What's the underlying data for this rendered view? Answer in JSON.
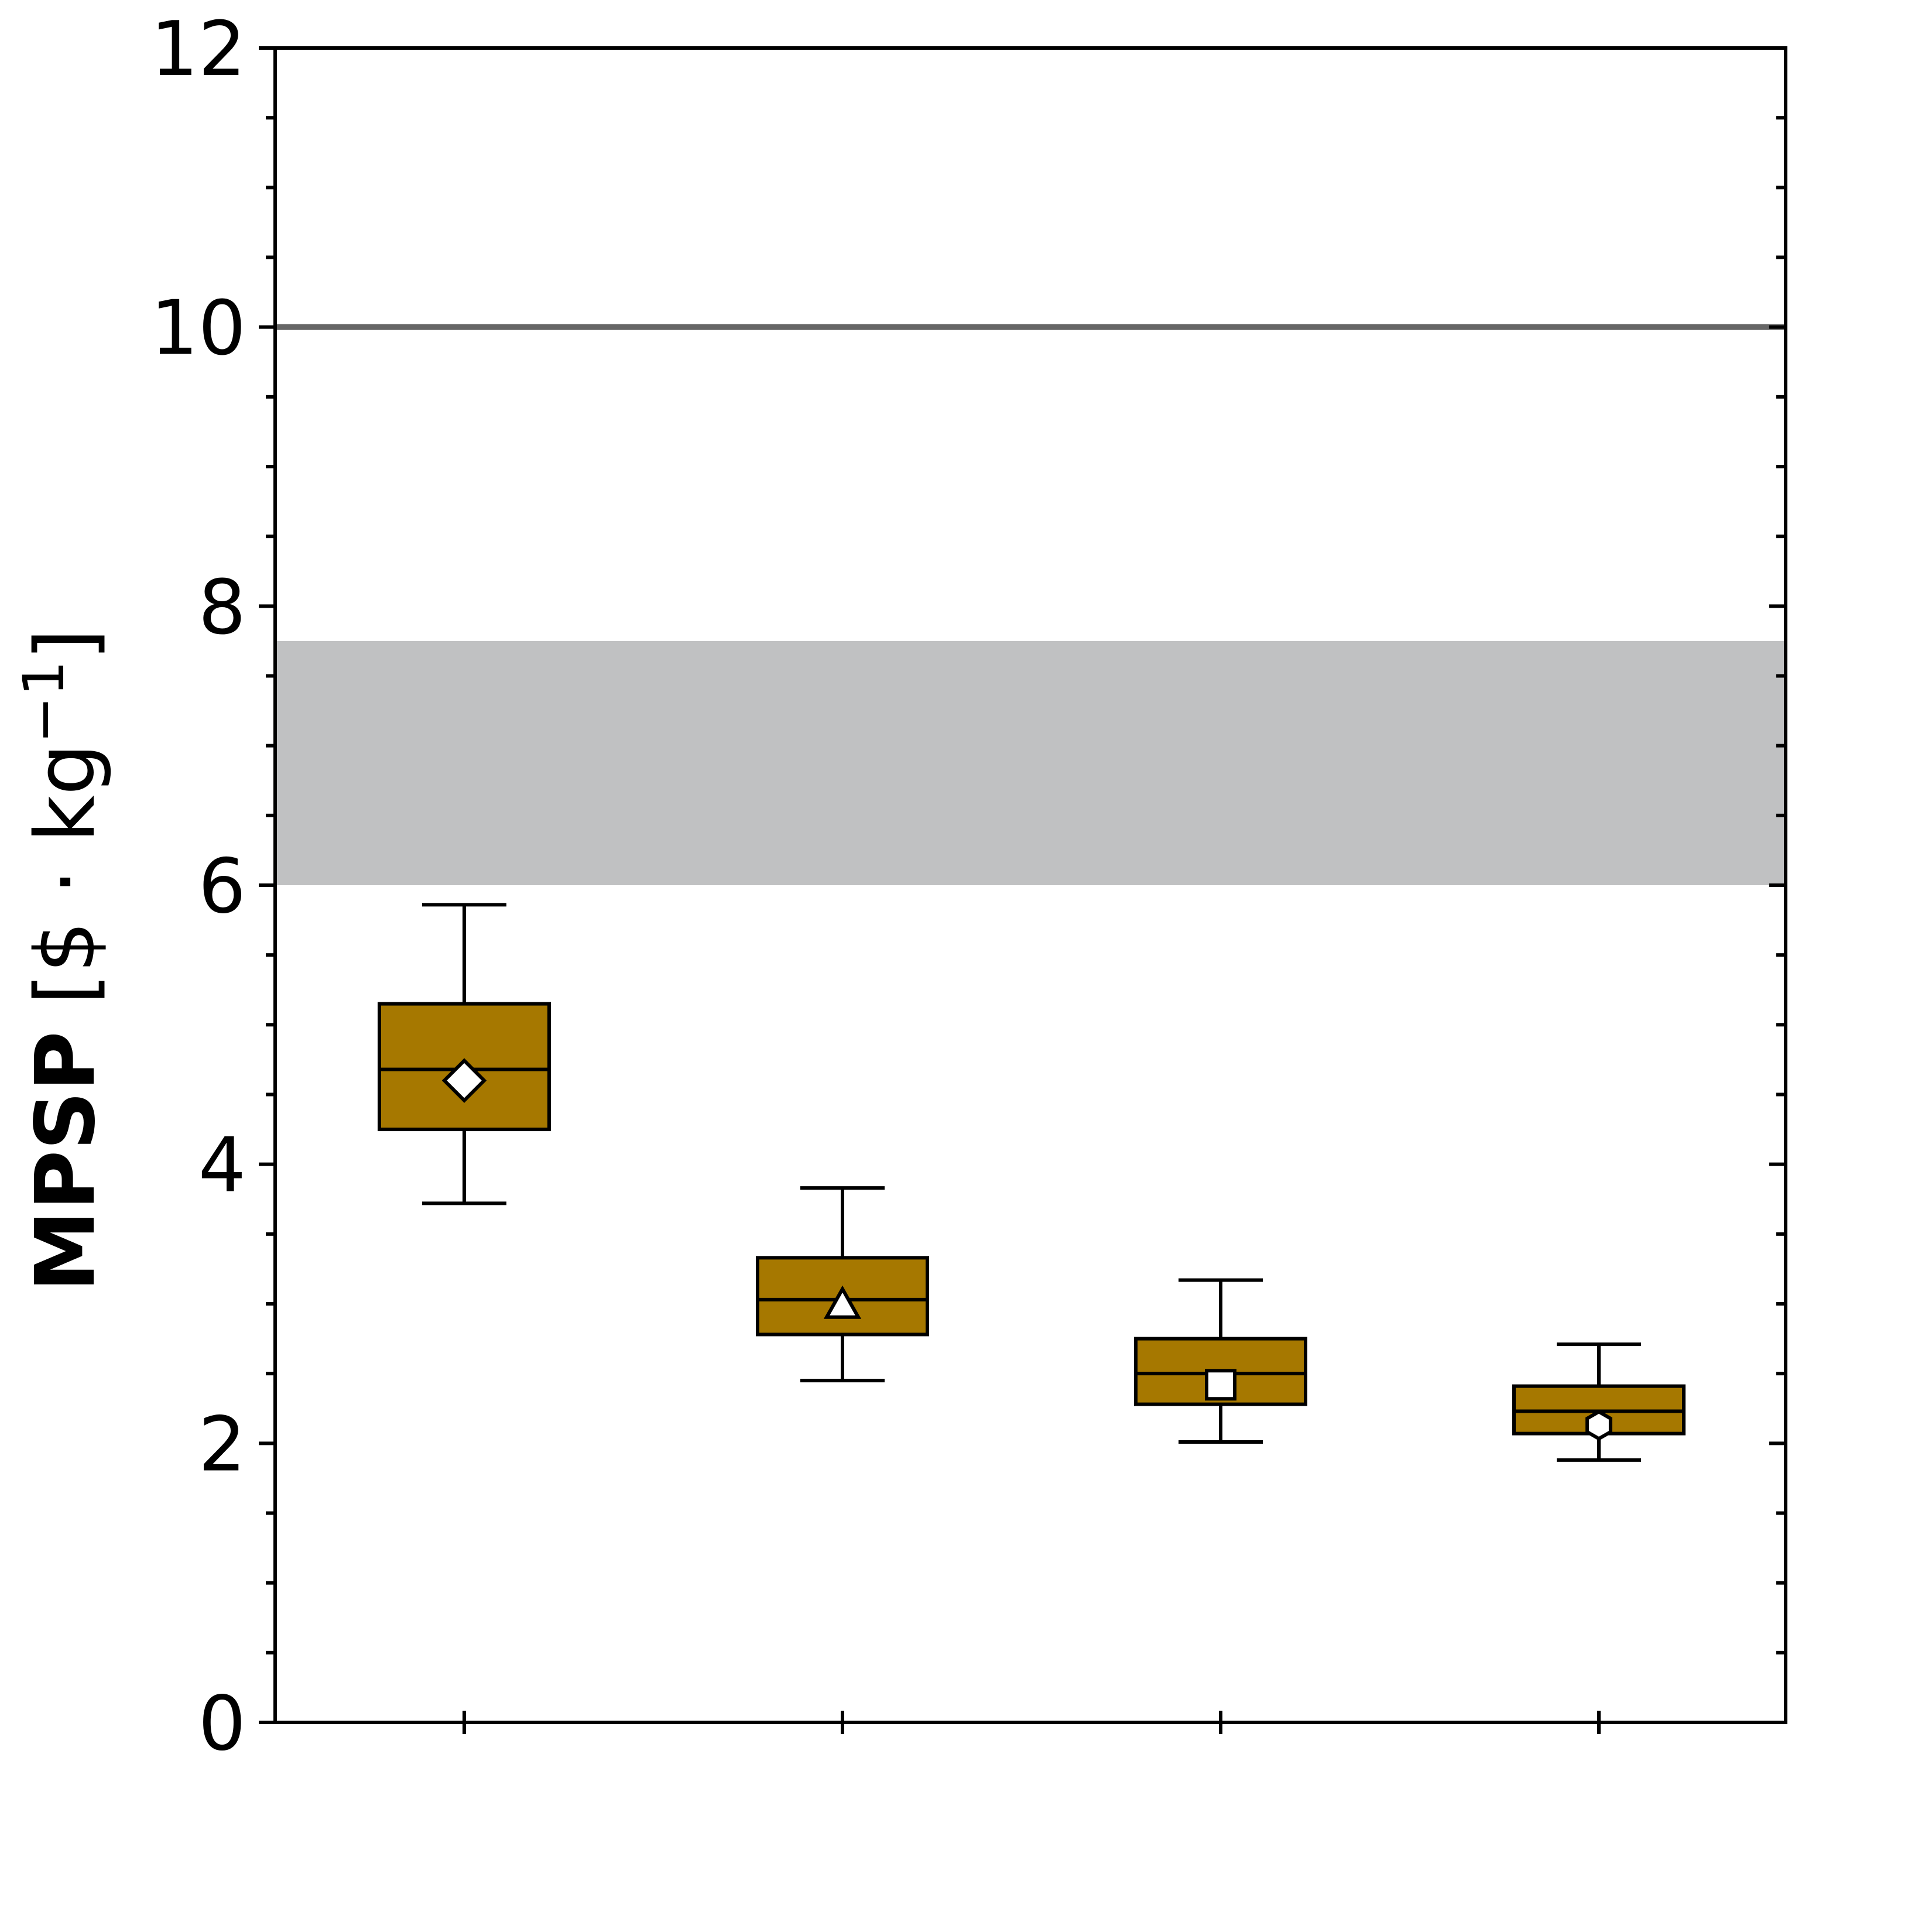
{
  "chart_data": {
    "type": "box",
    "ylabel": {
      "bold": "MPSP",
      "unit_prefix": " [$ · kg",
      "unit_exponent": "−1",
      "unit_suffix": "]"
    },
    "ylim": [
      0,
      12
    ],
    "yticks": [
      0,
      2,
      4,
      6,
      8,
      10,
      12
    ],
    "yticks_minor_step": 0.5,
    "xticks_count": 4,
    "grid": false,
    "reference_line": {
      "y": 10,
      "color": "#666666"
    },
    "reference_band": {
      "y_low": 6.0,
      "y_high": 7.75,
      "color": "#c0c1c2"
    },
    "box_color": "#a67800",
    "boxes": [
      {
        "whisker_low": 3.72,
        "q1": 4.25,
        "median": 4.68,
        "q3": 5.15,
        "whisker_high": 5.86,
        "mean": 4.6,
        "marker": "diamond"
      },
      {
        "whisker_low": 2.45,
        "q1": 2.78,
        "median": 3.03,
        "q3": 3.33,
        "whisker_high": 3.83,
        "mean": 2.98,
        "marker": "triangle"
      },
      {
        "whisker_low": 2.01,
        "q1": 2.28,
        "median": 2.5,
        "q3": 2.75,
        "whisker_high": 3.17,
        "mean": 2.42,
        "marker": "square"
      },
      {
        "whisker_low": 1.88,
        "q1": 2.07,
        "median": 2.23,
        "q3": 2.41,
        "whisker_high": 2.71,
        "mean": 2.13,
        "marker": "hexagon"
      }
    ]
  }
}
